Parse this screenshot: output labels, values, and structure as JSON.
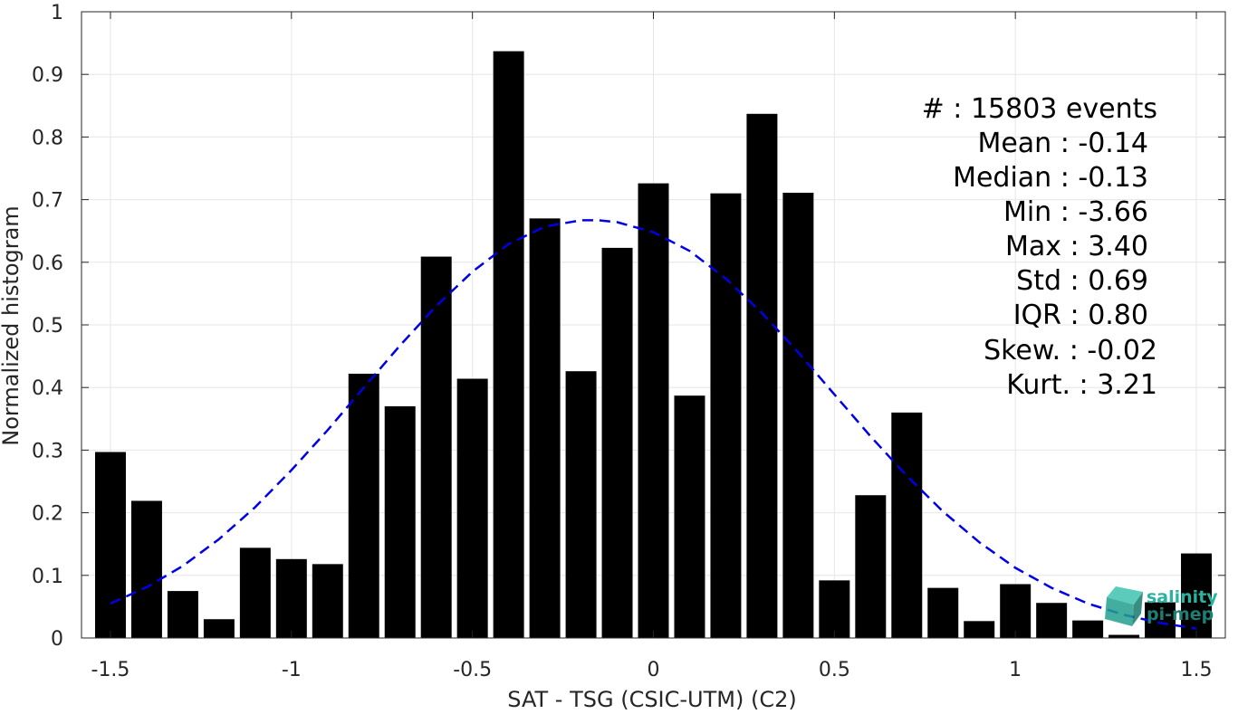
{
  "chart_data": {
    "type": "bar",
    "title": "",
    "xlabel": "SAT - TSG (CSIC-UTM) (C2)",
    "ylabel": "Normalized histogram",
    "xlim": [
      -1.58,
      1.58
    ],
    "ylim": [
      0,
      1
    ],
    "grid": true,
    "x_ticks": [
      -1.5,
      -1,
      -0.5,
      0,
      0.5,
      1,
      1.5
    ],
    "x_tick_labels": [
      "-1.5",
      "-1",
      "-0.5",
      "0",
      "0.5",
      "1",
      "1.5"
    ],
    "y_ticks": [
      0,
      0.1,
      0.2,
      0.3,
      0.4,
      0.5,
      0.6,
      0.7,
      0.8,
      0.9,
      1
    ],
    "y_tick_labels": [
      "0",
      "0.1",
      "0.2",
      "0.3",
      "0.4",
      "0.5",
      "0.6",
      "0.7",
      "0.8",
      "0.9",
      "1"
    ],
    "bar_color": "#000000",
    "bar_width": 0.085,
    "series": [
      {
        "x": [
          -1.5,
          -1.4,
          -1.3,
          -1.2,
          -1.1,
          -1.0,
          -0.9,
          -0.8,
          -0.7,
          -0.6,
          -0.5,
          -0.4,
          -0.3,
          -0.2,
          -0.1,
          0.0,
          0.1,
          0.2,
          0.3,
          0.4,
          0.5,
          0.6,
          0.7,
          0.8,
          0.9,
          1.0,
          1.1,
          1.2,
          1.3,
          1.4,
          1.5
        ],
        "values": [
          0.297,
          0.219,
          0.075,
          0.03,
          0.144,
          0.126,
          0.118,
          0.422,
          0.37,
          0.609,
          0.414,
          0.937,
          0.67,
          0.426,
          0.623,
          0.726,
          0.387,
          0.71,
          0.837,
          0.711,
          0.092,
          0.228,
          0.36,
          0.08,
          0.027,
          0.086,
          0.056,
          0.028,
          0.005,
          0.057,
          0.135
        ]
      }
    ],
    "fit_curve": {
      "style": "dashed",
      "color": "#0000e6",
      "x": [
        -1.5,
        -1.4,
        -1.3,
        -1.2,
        -1.1,
        -1.0,
        -0.9,
        -0.8,
        -0.7,
        -0.6,
        -0.5,
        -0.4,
        -0.3,
        -0.2,
        -0.15,
        -0.1,
        0.0,
        0.1,
        0.2,
        0.3,
        0.4,
        0.5,
        0.6,
        0.7,
        0.8,
        0.9,
        1.0,
        1.1,
        1.2,
        1.3,
        1.4,
        1.5
      ],
      "y": [
        0.055,
        0.081,
        0.115,
        0.158,
        0.209,
        0.268,
        0.332,
        0.4,
        0.467,
        0.53,
        0.585,
        0.629,
        0.657,
        0.667,
        0.667,
        0.664,
        0.648,
        0.618,
        0.574,
        0.519,
        0.456,
        0.389,
        0.322,
        0.259,
        0.202,
        0.153,
        0.112,
        0.08,
        0.055,
        0.037,
        0.024,
        0.015
      ]
    }
  },
  "stats": [
    {
      "label": "#  : 15803 events"
    },
    {
      "label": "Mean : -0.14"
    },
    {
      "label": "Median : -0.13"
    },
    {
      "label": "Min : -3.66"
    },
    {
      "label": "Max : 3.40"
    },
    {
      "label": "Std : 0.69"
    },
    {
      "label": "IQR : 0.80"
    },
    {
      "label": "Skew. : -0.02"
    },
    {
      "label": "Kurt. : 3.21"
    }
  ],
  "logo": {
    "line1": "salinity",
    "line2": "pi-mep",
    "color1": "#2ab3a0",
    "color2": "#1d7f74"
  }
}
